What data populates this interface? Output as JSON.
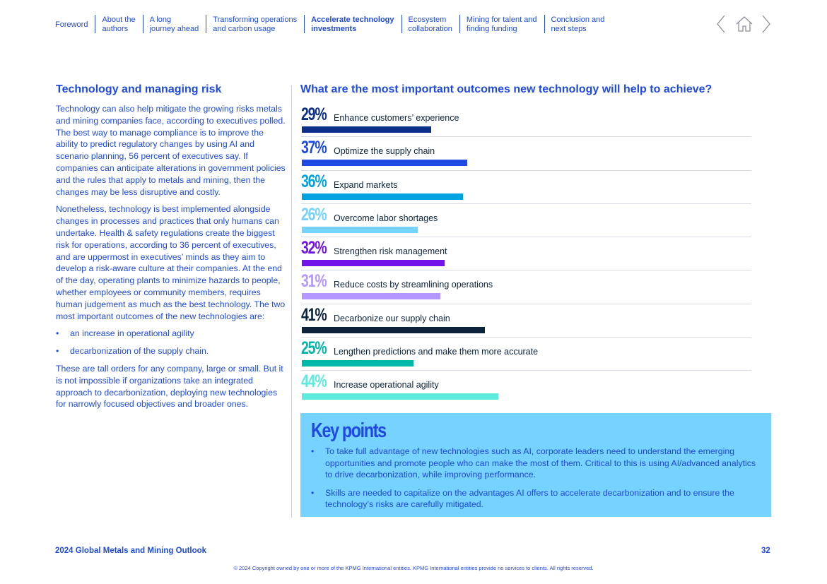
{
  "nav": {
    "items": [
      {
        "lines": [
          "Foreword"
        ],
        "active": false
      },
      {
        "lines": [
          "About the",
          "authors"
        ],
        "active": false
      },
      {
        "lines": [
          "A long",
          "journey ahead"
        ],
        "active": false
      },
      {
        "lines": [
          "Transforming operations",
          "and carbon usage"
        ],
        "active": false
      },
      {
        "lines": [
          "Accelerate technology",
          "investments"
        ],
        "active": true
      },
      {
        "lines": [
          "Ecosystem",
          "collaboration"
        ],
        "active": false
      },
      {
        "lines": [
          "Mining for talent and",
          "finding funding"
        ],
        "active": false
      },
      {
        "lines": [
          "Conclusion and",
          "next steps"
        ],
        "active": false
      }
    ],
    "tools": {
      "prev_icon": "chevron-left-icon",
      "home_icon": "home-icon",
      "next_icon": "chevron-right-icon"
    }
  },
  "left": {
    "heading": "Technology and managing risk",
    "para1": "Technology can also help mitigate the growing risks metals and mining companies face, according to executives polled. The best way to manage compliance is to improve the ability to predict regulatory changes by using AI and scenario planning, 56 percent of executives say. If companies can anticipate alterations in government policies and the rules that apply to metals and mining, then the changes may be less disruptive and costly.",
    "para2": "Nonetheless, technology is best implemented alongside changes in processes and practices that only humans can undertake. Health & safety regulations create the biggest risk for operations, according to 36 percent of executives, and are uppermost in executives’ minds as they aim to develop a risk-aware culture at their companies. At the end of the day, operating plants to minimize hazards to people, whether employees or community members, requires human judgement as much as the best technology. The two most important outcomes of the new technologies are:",
    "bullets": [
      "an increase in operational agility",
      "decarbonization of the supply chain."
    ],
    "para3": "These are tall orders for any company, large or small. But it is not impossible if organizations take an integrated approach to decarbonization, deploying new technologies for narrowly focused objectives and broader ones."
  },
  "chart_data": {
    "type": "bar",
    "orientation": "horizontal",
    "title": "What are the most important outcomes new technology will help to achieve?",
    "unit": "%",
    "categories": [
      "Enhance customers’ experience",
      "Optimize the supply chain",
      "Expand markets",
      "Overcome labor shortages",
      "Strengthen risk management",
      "Reduce costs by streamlining operations",
      "Decarbonize our supply chain",
      "Lengthen predictions and make them more accurate",
      "Increase operational agility"
    ],
    "values": [
      29,
      37,
      36,
      26,
      32,
      31,
      41,
      25,
      44
    ],
    "value_labels": [
      "29%",
      "37%",
      "36%",
      "26%",
      "32%",
      "31%",
      "41%",
      "25%",
      "44%"
    ],
    "colors": [
      "#0c2f8a",
      "#1e49e2",
      "#00a3e0",
      "#76d2ff",
      "#7213ea",
      "#b497ff",
      "#0c233c",
      "#00b8a9",
      "#5eeadc"
    ],
    "xlim": [
      0,
      100
    ]
  },
  "key_points": {
    "heading": "Key points",
    "items": [
      "To take full advantage of new technologies such as AI, corporate leaders need to understand the emerging opportunities and promote people who can make the most of them. Critical to this is using AI/advanced analytics to drive decarbonization, while improving performance.",
      "Skills are needed to capitalize on the advantages AI offers to accelerate decarbonization and to ensure the technology’s risks are carefully mitigated."
    ],
    "background": "#76d2ff"
  },
  "footer": {
    "title": "2024 Global Metals and Mining Outlook",
    "page": "32",
    "copyright": "© 2024 Copyright owned by one or more of the KPMG International entities. KPMG International entities provide no services to clients. All rights reserved."
  },
  "colors": {
    "brand_blue": "#1e49e2",
    "text_dark": "#0c233c"
  }
}
